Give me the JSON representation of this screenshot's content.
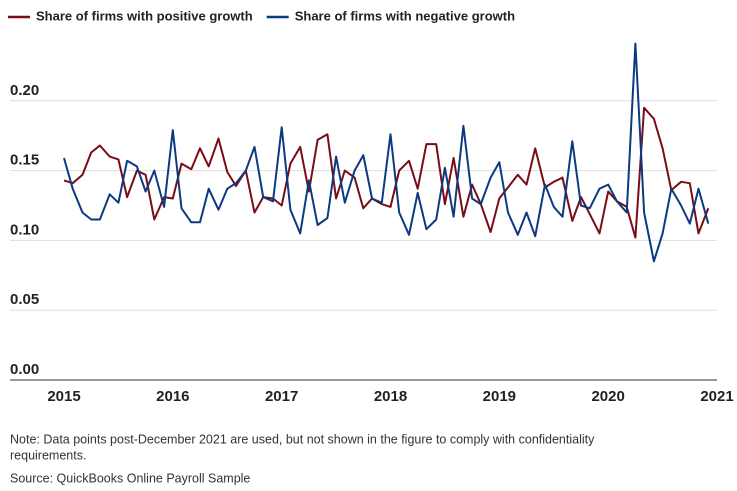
{
  "chart_data": {
    "type": "line",
    "x": [
      2015,
      2015.08,
      2015.17,
      2015.25,
      2015.33,
      2015.42,
      2015.5,
      2015.58,
      2015.67,
      2015.75,
      2015.83,
      2015.92,
      2016,
      2016.08,
      2016.17,
      2016.25,
      2016.33,
      2016.42,
      2016.5,
      2016.58,
      2016.67,
      2016.75,
      2016.83,
      2016.92,
      2017,
      2017.08,
      2017.17,
      2017.25,
      2017.33,
      2017.42,
      2017.5,
      2017.58,
      2017.67,
      2017.75,
      2017.83,
      2017.92,
      2018,
      2018.08,
      2018.17,
      2018.25,
      2018.33,
      2018.42,
      2018.5,
      2018.58,
      2018.67,
      2018.75,
      2018.83,
      2018.92,
      2019,
      2019.08,
      2019.17,
      2019.25,
      2019.33,
      2019.42,
      2019.5,
      2019.58,
      2019.67,
      2019.75,
      2019.83,
      2019.92,
      2020,
      2020.08,
      2020.17,
      2020.25,
      2020.33,
      2020.42,
      2020.5,
      2020.58,
      2020.67,
      2020.75,
      2020.83,
      2020.92
    ],
    "series": [
      {
        "name": "Share of firms with positive growth",
        "color": "#7a0c16",
        "values": [
          0.143,
          0.141,
          0.147,
          0.163,
          0.168,
          0.16,
          0.158,
          0.131,
          0.15,
          0.147,
          0.115,
          0.131,
          0.13,
          0.155,
          0.151,
          0.166,
          0.153,
          0.173,
          0.149,
          0.139,
          0.15,
          0.12,
          0.131,
          0.13,
          0.125,
          0.155,
          0.167,
          0.135,
          0.172,
          0.176,
          0.13,
          0.15,
          0.145,
          0.123,
          0.13,
          0.126,
          0.124,
          0.15,
          0.157,
          0.137,
          0.169,
          0.169,
          0.126,
          0.159,
          0.117,
          0.14,
          0.126,
          0.106,
          0.13,
          0.138,
          0.147,
          0.14,
          0.166,
          0.138,
          0.142,
          0.145,
          0.114,
          0.131,
          0.119,
          0.105,
          0.135,
          0.128,
          0.124,
          0.102,
          0.195,
          0.187,
          0.166,
          0.136,
          0.142,
          0.141,
          0.105,
          0.123
        ]
      },
      {
        "name": "Share of firms with negative growth",
        "color": "#0b3a82",
        "values": [
          0.159,
          0.137,
          0.12,
          0.115,
          0.115,
          0.133,
          0.127,
          0.157,
          0.153,
          0.135,
          0.15,
          0.124,
          0.179,
          0.123,
          0.113,
          0.113,
          0.137,
          0.122,
          0.137,
          0.141,
          0.15,
          0.167,
          0.131,
          0.128,
          0.181,
          0.122,
          0.105,
          0.143,
          0.111,
          0.116,
          0.16,
          0.127,
          0.15,
          0.161,
          0.13,
          0.127,
          0.176,
          0.12,
          0.104,
          0.134,
          0.108,
          0.115,
          0.152,
          0.117,
          0.182,
          0.13,
          0.126,
          0.145,
          0.156,
          0.12,
          0.104,
          0.12,
          0.103,
          0.14,
          0.124,
          0.117,
          0.171,
          0.125,
          0.123,
          0.137,
          0.14,
          0.128,
          0.12,
          0.241,
          0.12,
          0.085,
          0.105,
          0.137,
          0.125,
          0.112,
          0.137,
          0.112
        ]
      }
    ],
    "xlim": [
      2015,
      2021
    ],
    "xticks": [
      2015,
      2016,
      2017,
      2018,
      2019,
      2020,
      2021
    ],
    "ylim": [
      0,
      0.25
    ],
    "yticks": [
      {
        "value": 0,
        "label": "0.00"
      },
      {
        "value": 0.05,
        "label": "0.05"
      },
      {
        "value": 0.1,
        "label": "0.10"
      },
      {
        "value": 0.15,
        "label": "0.15"
      },
      {
        "value": 0.2,
        "label": "0.20"
      }
    ],
    "grid": true,
    "legend": "top-left",
    "note": "Note: Data points post-December 2021 are used, but not shown in the figure to comply with confidentiality",
    "note_cont": "requirements.",
    "source": "Source: QuickBooks Online Payroll Sample"
  }
}
